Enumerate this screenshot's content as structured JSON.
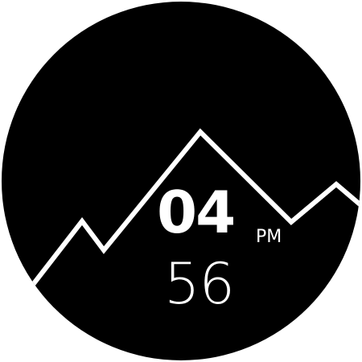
{
  "watch": {
    "hour": "04",
    "period": "PM",
    "minute": "56"
  },
  "colors": {
    "face": "#000000",
    "foreground": "#ffffff",
    "background": "#ffffff"
  },
  "icons": [
    "mountain-ridge-graphic"
  ]
}
